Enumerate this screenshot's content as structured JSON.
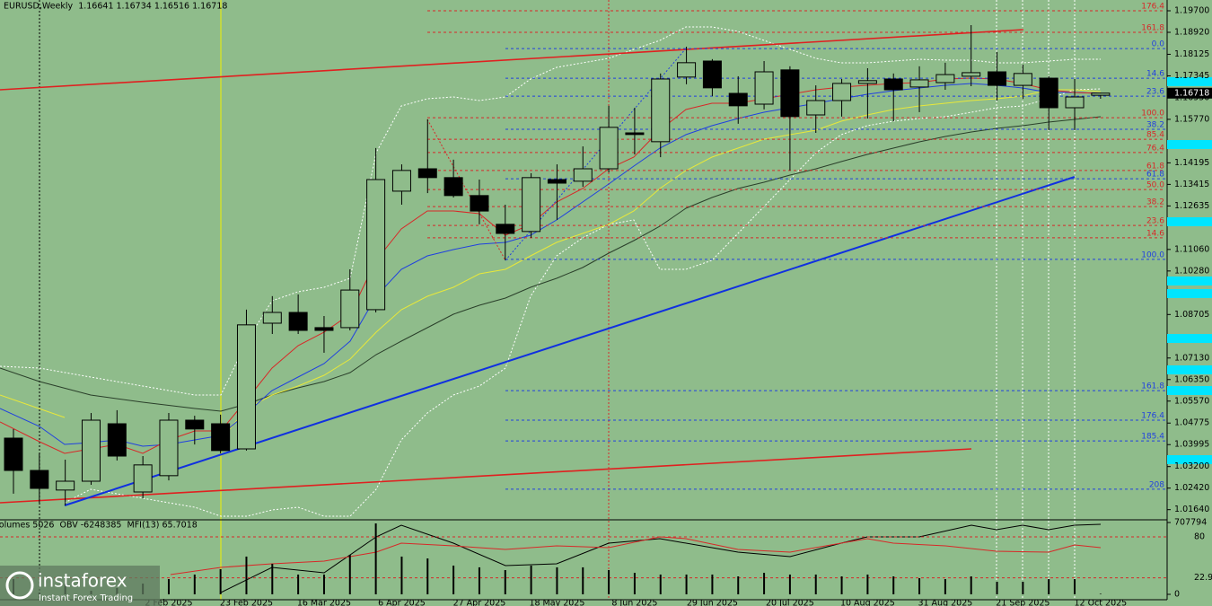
{
  "chart_data": [
    {
      "type": "candlestick",
      "title": "EURUSD,Weekly  1.16641 1.16734 1.16516 1.16718",
      "categories": [
        null,
        null,
        null,
        null,
        null,
        null,
        "2 Feb 2025",
        null,
        null,
        "23 Feb 2025",
        null,
        null,
        "16 Mar 2025",
        null,
        null,
        "6 Apr 2025",
        null,
        null,
        "27 Apr 2025",
        null,
        null,
        "18 May 2025",
        null,
        null,
        "8 Jun 2025",
        null,
        null,
        "29 Jun 2025",
        null,
        null,
        "20 Jul 2025",
        null,
        null,
        "10 Aug 2025",
        null,
        null,
        "31 Aug 2025",
        null,
        null,
        "21 Sep 2025",
        null,
        null,
        "12 Oct 2025"
      ],
      "open": [
        1.0423,
        1.0306,
        1.0235,
        1.0267,
        1.0475,
        1.0228,
        1.0287,
        1.0488,
        1.0475,
        1.0384,
        1.0839,
        1.0878,
        1.0823,
        1.0823,
        1.0888,
        1.1317,
        1.1398,
        1.1366,
        1.1301,
        1.1197,
        1.1171,
        1.1359,
        1.1353,
        1.1398,
        1.1528,
        1.1496,
        1.173,
        1.1788,
        1.1671,
        1.1632,
        1.1756,
        1.1593,
        1.1645,
        1.1707,
        1.1723,
        1.1694,
        1.171,
        1.1733,
        1.1749,
        1.17,
        1.1726,
        1.1619,
        1.16641
      ],
      "high": [
        1.0456,
        1.0368,
        1.0345,
        1.0514,
        1.0524,
        1.0358,
        1.0514,
        1.0504,
        1.0508,
        1.0888,
        1.0937,
        1.0943,
        1.0865,
        1.1034,
        1.1473,
        1.1414,
        1.1577,
        1.1431,
        1.1359,
        1.1268,
        1.1382,
        1.1414,
        1.1479,
        1.1626,
        1.1619,
        1.1743,
        1.184,
        1.1795,
        1.1733,
        1.1788,
        1.1769,
        1.17,
        1.1723,
        1.1762,
        1.1743,
        1.1769,
        1.1782,
        1.1918,
        1.1821,
        1.1775,
        1.1733,
        1.1723,
        1.16734
      ],
      "low": [
        1.0222,
        1.0189,
        1.0179,
        1.0254,
        1.0342,
        1.0205,
        1.027,
        1.04,
        1.0368,
        1.0378,
        1.08,
        1.08,
        1.0732,
        1.0813,
        1.0878,
        1.1268,
        1.131,
        1.1294,
        1.1197,
        1.1067,
        1.1148,
        1.1213,
        1.1333,
        1.1385,
        1.145,
        1.144,
        1.1704,
        1.1661,
        1.1561,
        1.1613,
        1.1392,
        1.1528,
        1.1587,
        1.158,
        1.157,
        1.1603,
        1.1684,
        1.1697,
        1.1645,
        1.1651,
        1.1538,
        1.1538,
        1.16516
      ],
      "close": [
        1.0306,
        1.0241,
        1.0267,
        1.0488,
        1.0358,
        1.0326,
        1.0488,
        1.0456,
        1.0378,
        1.0833,
        1.0878,
        1.0813,
        1.0813,
        1.0959,
        1.1359,
        1.1392,
        1.1366,
        1.1301,
        1.1245,
        1.1164,
        1.1366,
        1.1346,
        1.1398,
        1.1548,
        1.1522,
        1.1723,
        1.1782,
        1.1691,
        1.1626,
        1.1749,
        1.1587,
        1.1645,
        1.1707,
        1.1717,
        1.1684,
        1.172,
        1.1739,
        1.1746,
        1.17,
        1.1743,
        1.1619,
        1.1658,
        1.16718
      ],
      "up_color": "#8fbc8b",
      "down_color": "#000000",
      "ylim": [
        1.01305,
        1.2009
      ],
      "yticks": [
        {
          "value": 1.197,
          "label": "1.19700"
        },
        {
          "value": 1.1892,
          "label": "1.18920"
        },
        {
          "value": 1.18125,
          "label": "1.18125"
        },
        {
          "value": 1.17345,
          "label": "1.17345"
        },
        {
          "value": 1.1655,
          "label": "1.16550"
        },
        {
          "value": 1.1577,
          "label": "1.15770"
        },
        {
          "value": 1.14195,
          "label": "1.14195"
        },
        {
          "value": 1.13415,
          "label": "1.13415"
        },
        {
          "value": 1.12635,
          "label": "1.12635"
        },
        {
          "value": 1.1106,
          "label": "1.11060"
        },
        {
          "value": 1.1028,
          "label": "1.10280"
        },
        {
          "value": 1.08705,
          "label": "1.08705"
        },
        {
          "value": 1.0713,
          "label": "1.07130"
        },
        {
          "value": 1.0635,
          "label": "1.06350"
        },
        {
          "value": 1.0557,
          "label": "1.05570"
        },
        {
          "value": 1.04775,
          "label": "1.04775"
        },
        {
          "value": 1.03995,
          "label": "1.03995"
        },
        {
          "value": 1.032,
          "label": "1.03200"
        },
        {
          "value": 1.0242,
          "label": "1.02420"
        },
        {
          "value": 1.0164,
          "label": "1.01640"
        }
      ],
      "last_price": 1.16718,
      "levels": [
        {
          "label": "176.4",
          "value": 1.197,
          "color": "#d82828"
        },
        {
          "label": "161.8",
          "value": 1.1892,
          "color": "#d82828"
        },
        {
          "label": "0.0",
          "value": 1.1833,
          "color": "#2040e0"
        },
        {
          "label": "14.6",
          "value": 1.1726,
          "color": "#2040e0"
        },
        {
          "label": "23.6",
          "value": 1.1661,
          "color": "#2040e0"
        },
        {
          "label": "100.0",
          "value": 1.1583,
          "color": "#d82828"
        },
        {
          "label": "38.2",
          "value": 1.1541,
          "color": "#2040e0"
        },
        {
          "label": "85.4",
          "value": 1.1505,
          "color": "#d82828"
        },
        {
          "label": "76.4",
          "value": 1.1457,
          "color": "#d82828"
        },
        {
          "label": "61.8",
          "value": 1.1392,
          "color": "#d82828"
        },
        {
          "label": "61.8",
          "value": 1.1362,
          "color": "#2040e0"
        },
        {
          "label": "50.0",
          "value": 1.1323,
          "color": "#d82828"
        },
        {
          "label": "38.2",
          "value": 1.1261,
          "color": "#d82828"
        },
        {
          "label": "23.6",
          "value": 1.1193,
          "color": "#d82828"
        },
        {
          "label": "14.6",
          "value": 1.1148,
          "color": "#d82828"
        },
        {
          "label": "100.0",
          "value": 1.107,
          "color": "#2040e0"
        },
        {
          "label": "161.8",
          "value": 1.0595,
          "color": "#2040e0"
        },
        {
          "label": "176.4",
          "value": 1.0488,
          "color": "#2040e0"
        },
        {
          "label": "185.4",
          "value": 1.0413,
          "color": "#2040e0"
        },
        {
          "label": "208",
          "value": 1.0238,
          "color": "#2040e0"
        }
      ]
    },
    {
      "type": "bar",
      "title": "Volumes 5026  OBV -6248385  MFI(13) 65.7018",
      "values": [
        150000,
        18000,
        106000,
        35000,
        62000,
        106000,
        150000,
        195000,
        248000,
        372000,
        301000,
        195000,
        195000,
        389000,
        699000,
        372000,
        354000,
        283000,
        266000,
        239000,
        283000,
        266000,
        266000,
        239000,
        212000,
        195000,
        195000,
        195000,
        177000,
        212000,
        195000,
        195000,
        177000,
        195000,
        177000,
        159000,
        150000,
        177000,
        124000,
        124000,
        150000,
        150000,
        5026
      ],
      "color": "#000000",
      "ylim": [
        0,
        707794
      ],
      "yticks": [
        0,
        707794
      ],
      "y2lim": [
        0,
        100
      ],
      "y2ticks": [
        80,
        22.9741
      ]
    }
  ],
  "logo": {
    "name": "instaforex",
    "tagline": "Instant Forex Trading"
  }
}
